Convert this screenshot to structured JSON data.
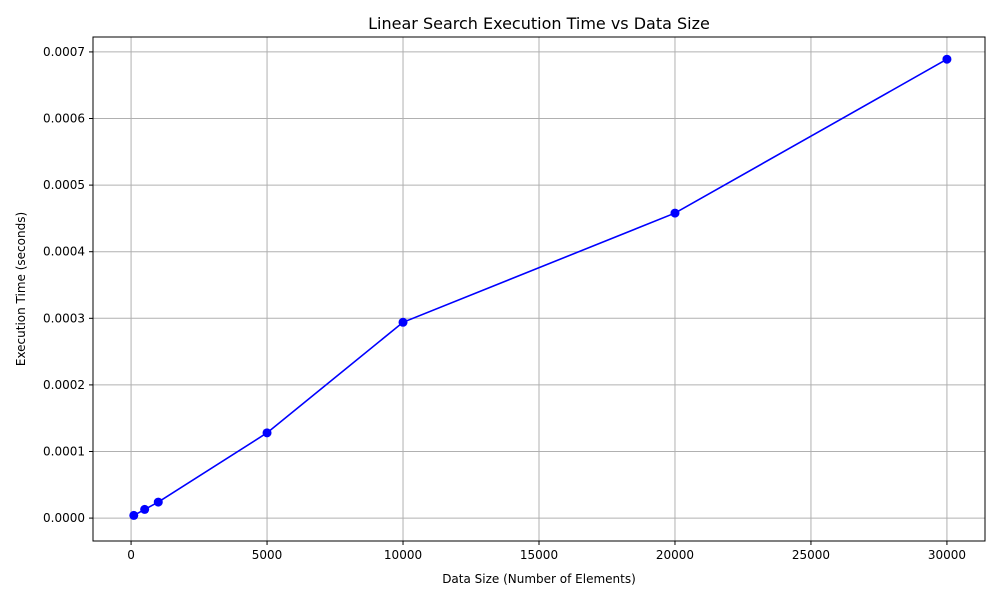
{
  "chart_data": {
    "type": "line",
    "title": "Linear Search Execution Time vs Data Size",
    "xlabel": "Data Size (Number of Elements)",
    "ylabel": "Execution Time (seconds)",
    "xlim": [
      -1400,
      31400
    ],
    "ylim": [
      -3.44e-05,
      0.0007224
    ],
    "xticks": [
      0,
      5000,
      10000,
      15000,
      20000,
      25000,
      30000
    ],
    "xtick_labels": [
      "0",
      "5000",
      "10000",
      "15000",
      "20000",
      "25000",
      "30000"
    ],
    "yticks": [
      0,
      0.0001,
      0.0002,
      0.0003,
      0.0004,
      0.0005,
      0.0006,
      0.0007
    ],
    "ytick_labels": [
      "0.0000",
      "0.0001",
      "0.0002",
      "0.0003",
      "0.0004",
      "0.0005",
      "0.0006",
      "0.0007"
    ],
    "grid": true,
    "legend": false,
    "series": [
      {
        "x": [
          100,
          500,
          1000,
          5000,
          10000,
          20000,
          30000
        ],
        "y": [
          4e-06,
          1.3e-05,
          2.4e-05,
          0.000128,
          0.000294,
          0.000458,
          0.000689
        ],
        "color": "#0000ff",
        "marker": "circle"
      }
    ]
  }
}
